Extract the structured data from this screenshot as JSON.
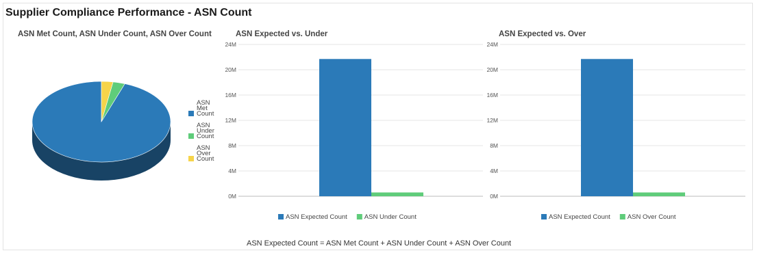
{
  "page": {
    "title": "Supplier Compliance Performance - ASN Count",
    "footnote": "ASN Expected Count = ASN Met Count + ASN Under Count + ASN Over Count"
  },
  "colors": {
    "blue": "#2b7ab8",
    "blue_dark": "#1b4a72",
    "green": "#5fcc7a",
    "green_dark": "#3a8a4f",
    "yellow": "#f6d44a",
    "yellow_dark": "#b39a2a",
    "grid": "#e6e6e6",
    "axis": "#bbbbbb"
  },
  "chart_data": [
    {
      "type": "pie",
      "title": "ASN Met Count, ASN Under Count, ASN Over Count",
      "legend_placement": "right",
      "slices": [
        {
          "label": "ASN Met Count",
          "label_lines": [
            "ASN",
            "Met",
            "Count"
          ],
          "value": 94.5,
          "color": "#2b7ab8"
        },
        {
          "label": "ASN Under Count",
          "label_lines": [
            "ASN",
            "Under",
            "Count"
          ],
          "value": 2.8,
          "color": "#5fcc7a"
        },
        {
          "label": "ASN Over Count",
          "label_lines": [
            "ASN",
            "Over",
            "Count"
          ],
          "value": 2.7,
          "color": "#f6d44a"
        }
      ]
    },
    {
      "type": "bar",
      "title": "ASN Expected vs. Under",
      "categories": [
        "ASN Expected Count",
        "ASN Under Count"
      ],
      "values": [
        21.7,
        0.6
      ],
      "colors": [
        "#2b7ab8",
        "#5fcc7a"
      ],
      "ylim": [
        0,
        24
      ],
      "yticks": [
        "0M",
        "4M",
        "8M",
        "12M",
        "16M",
        "20M",
        "24M"
      ],
      "grid": true,
      "legend_placement": "bottom"
    },
    {
      "type": "bar",
      "title": "ASN Expected vs. Over",
      "categories": [
        "ASN Expected Count",
        "ASN Over Count"
      ],
      "values": [
        21.7,
        0.6
      ],
      "colors": [
        "#2b7ab8",
        "#5fcc7a"
      ],
      "ylim": [
        0,
        24
      ],
      "yticks": [
        "0M",
        "4M",
        "8M",
        "12M",
        "16M",
        "20M",
        "24M"
      ],
      "grid": true,
      "legend_placement": "bottom"
    }
  ]
}
